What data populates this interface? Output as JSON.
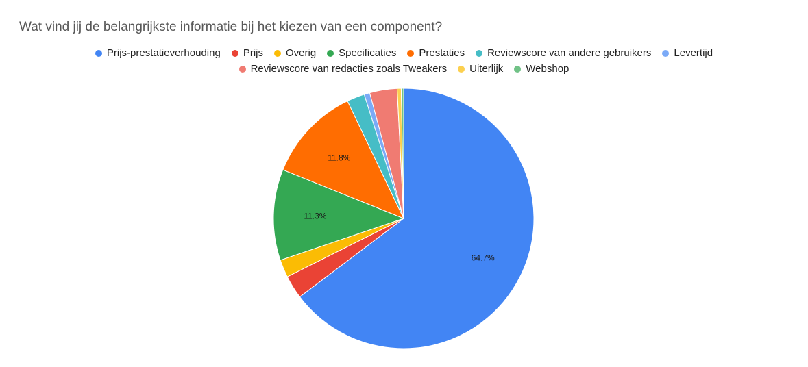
{
  "chart_data": {
    "type": "pie",
    "title": "Wat vind jij de belangrijkste informatie bij het kiezen van een component?",
    "legend_position": "top",
    "slices": [
      {
        "label": "Prijs-prestatieverhouding",
        "value": 64.7,
        "color": "#4285F4",
        "data_label": "64.7%"
      },
      {
        "label": "Prijs",
        "value": 2.9,
        "color": "#EA4335",
        "data_label": ""
      },
      {
        "label": "Overig",
        "value": 2.2,
        "color": "#FBBC04",
        "data_label": ""
      },
      {
        "label": "Specificaties",
        "value": 11.3,
        "color": "#34A853",
        "data_label": "11.3%"
      },
      {
        "label": "Prestaties",
        "value": 11.8,
        "color": "#FF6D01",
        "data_label": "11.8%"
      },
      {
        "label": "Reviewscore van andere gebruikers",
        "value": 2.2,
        "color": "#46BDC6",
        "data_label": ""
      },
      {
        "label": "Levertijd",
        "value": 0.7,
        "color": "#7BAAF7",
        "data_label": ""
      },
      {
        "label": "Reviewscore van redacties zoals Tweakers",
        "value": 3.4,
        "color": "#F07B72",
        "data_label": ""
      },
      {
        "label": "Uiterlijk",
        "value": 0.5,
        "color": "#FCD04F",
        "data_label": ""
      },
      {
        "label": "Webshop",
        "value": 0.3,
        "color": "#71C287",
        "data_label": ""
      }
    ]
  }
}
